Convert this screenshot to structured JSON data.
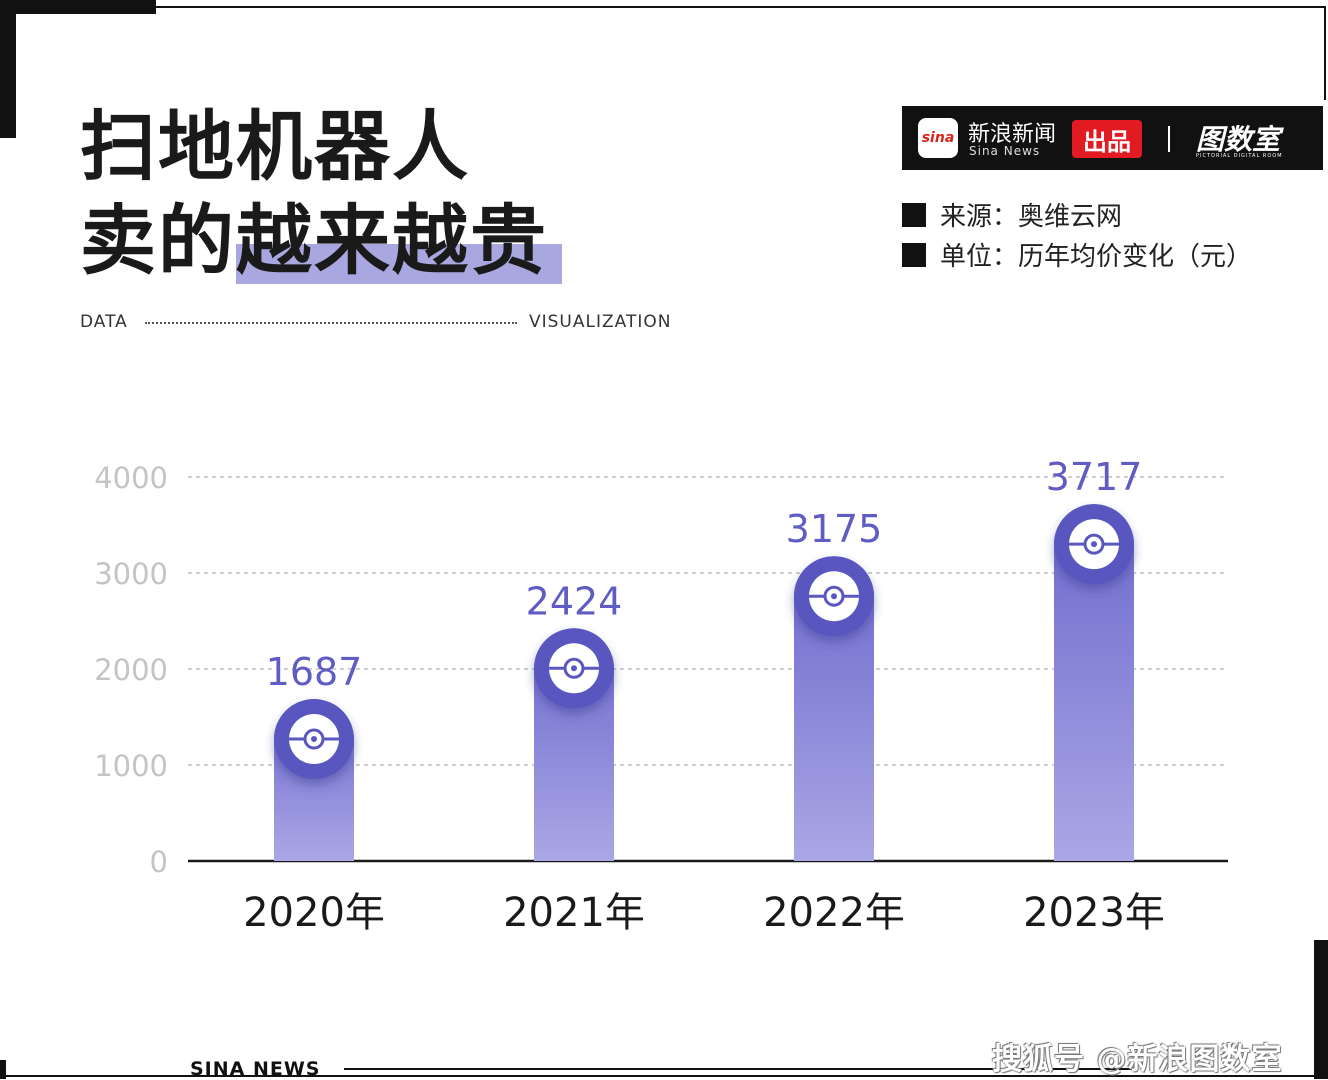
{
  "title": {
    "line1": "扫地机器人",
    "line2": "卖的越来越贵"
  },
  "tagline": {
    "left": "DATA",
    "right": "VISUALIZATION"
  },
  "brand": {
    "logo_text": "sina",
    "name": "新浪新闻",
    "name_en": "Sina News",
    "tag": "出品",
    "room": "图数室",
    "room_en": "PICTORIAL DIGITAL ROOM"
  },
  "meta": {
    "source": "来源：奥维云网",
    "unit": "单位：历年均价变化（元）"
  },
  "colors": {
    "bar_top": "#6c69cc",
    "bar_bottom": "#aaa7e6",
    "value_label": "#5f5cc4",
    "grid": "#bdbdbd",
    "highlight": "#a9a7e0"
  },
  "chart_data": {
    "type": "bar",
    "categories": [
      "2020年",
      "2021年",
      "2022年",
      "2023年"
    ],
    "values": [
      1687,
      2424,
      3175,
      3717
    ],
    "yticks": [
      "0",
      "1000",
      "2000",
      "3000",
      "4000"
    ],
    "ylim": [
      0,
      4000
    ],
    "grid": true,
    "data_labels": true,
    "bar_icon": "robot-vacuum-icon"
  },
  "footer": {
    "brand": "SINA  NEWS",
    "watermark": "搜狐号 @新浪图数室"
  }
}
